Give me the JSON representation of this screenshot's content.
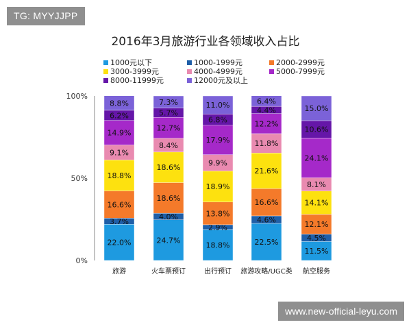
{
  "watermark_top": "TG: MYYJJPP",
  "watermark_bottom": "www.new-official-leyu.com",
  "chart_data": {
    "type": "bar",
    "stacked": true,
    "title": "2016年3月旅游行业各领域收入占比",
    "categories": [
      "旅游",
      "火车票预订",
      "出行预订",
      "旅游攻略/UGC类",
      "航空服务"
    ],
    "yticks": [
      "0%",
      "50%",
      "100%"
    ],
    "ylim": [
      0,
      100
    ],
    "legend_position": "top",
    "series": [
      {
        "name": "1000元以下",
        "color": "#1e9ae0",
        "values": [
          22.0,
          24.7,
          18.8,
          22.5,
          11.5
        ]
      },
      {
        "name": "1000-1999元",
        "color": "#1f5fa8",
        "values": [
          3.7,
          4.0,
          2.9,
          4.6,
          4.5
        ]
      },
      {
        "name": "2000-2999元",
        "color": "#f47a2a",
        "values": [
          16.6,
          18.6,
          13.8,
          16.6,
          12.1
        ]
      },
      {
        "name": "3000-3999元",
        "color": "#fde10f",
        "values": [
          18.8,
          18.6,
          18.9,
          21.6,
          14.1
        ]
      },
      {
        "name": "4000-4999元",
        "color": "#e98ab0",
        "values": [
          9.1,
          8.4,
          9.9,
          11.8,
          8.1
        ]
      },
      {
        "name": "5000-7999元",
        "color": "#a529c9",
        "values": [
          14.9,
          12.7,
          17.9,
          12.2,
          24.1
        ]
      },
      {
        "name": "8000-11999元",
        "color": "#6516a8",
        "values": [
          6.2,
          5.7,
          6.8,
          4.4,
          10.6
        ]
      },
      {
        "name": "12000元及以上",
        "color": "#7b62d8",
        "values": [
          8.8,
          7.3,
          11.0,
          6.4,
          15.0
        ]
      }
    ],
    "labels": [
      [
        "22.0%",
        "3.7%",
        "16.6%",
        "18.8%",
        "9.1%",
        "14.9%",
        "6.2%",
        "8.8%"
      ],
      [
        "24.7%",
        "4.0%",
        "18.6%",
        "18.6%",
        "8.4%",
        "12.7%",
        "5.7%",
        "7.3%"
      ],
      [
        "18.8%",
        "2.9%",
        "13.8%",
        "18.9%",
        "9.9%",
        "17.9%",
        "6.8%",
        "11.0%"
      ],
      [
        "22.5%",
        "4.6%",
        "16.6%",
        "21.6%",
        "11.8%",
        "12.2%",
        "4.4%",
        "6.4%"
      ],
      [
        "11.5%",
        "4.5%",
        "12.1%",
        "14.1%",
        "8.1%",
        "24.1%",
        "10.6%",
        "15.0%"
      ]
    ]
  }
}
